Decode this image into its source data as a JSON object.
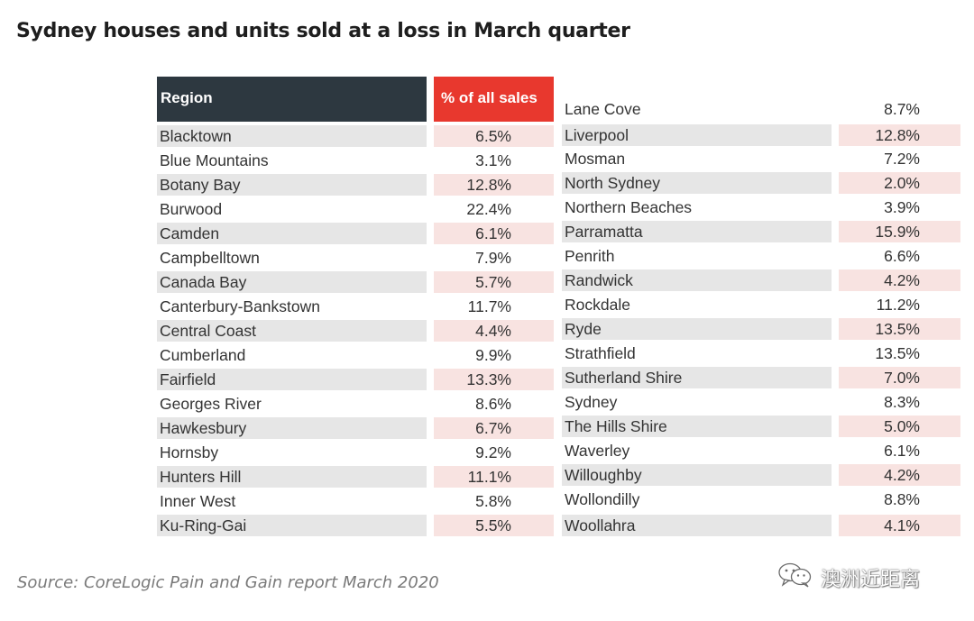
{
  "title": "Sydney houses and units sold at a loss in March quarter",
  "table": {
    "header_region": "Region",
    "header_pct": "% of all sales",
    "left_rows": [
      {
        "region": "Blacktown",
        "pct": "6.5%"
      },
      {
        "region": "Blue Mountains",
        "pct": "3.1%"
      },
      {
        "region": "Botany Bay",
        "pct": "12.8%"
      },
      {
        "region": "Burwood",
        "pct": "22.4%"
      },
      {
        "region": "Camden",
        "pct": "6.1%"
      },
      {
        "region": "Campbelltown",
        "pct": "7.9%"
      },
      {
        "region": "Canada Bay",
        "pct": "5.7%"
      },
      {
        "region": "Canterbury-Bankstown",
        "pct": "11.7%"
      },
      {
        "region": "Central Coast",
        "pct": "4.4%"
      },
      {
        "region": "Cumberland",
        "pct": "9.9%"
      },
      {
        "region": "Fairfield",
        "pct": "13.3%"
      },
      {
        "region": "Georges River",
        "pct": "8.6%"
      },
      {
        "region": "Hawkesbury",
        "pct": "6.7%"
      },
      {
        "region": "Hornsby",
        "pct": "9.2%"
      },
      {
        "region": "Hunters Hill",
        "pct": "11.1%"
      },
      {
        "region": "Inner West",
        "pct": "5.8%"
      },
      {
        "region": "Ku-Ring-Gai",
        "pct": "5.5%"
      }
    ],
    "right_rows": [
      {
        "region": "Lane Cove",
        "pct": "8.7%"
      },
      {
        "region": "Liverpool",
        "pct": "12.8%"
      },
      {
        "region": "Mosman",
        "pct": "7.2%"
      },
      {
        "region": "North Sydney",
        "pct": "2.0%"
      },
      {
        "region": "Northern Beaches",
        "pct": "3.9%"
      },
      {
        "region": "Parramatta",
        "pct": "15.9%"
      },
      {
        "region": "Penrith",
        "pct": "6.6%"
      },
      {
        "region": "Randwick",
        "pct": "4.2%"
      },
      {
        "region": "Rockdale",
        "pct": "11.2%"
      },
      {
        "region": "Ryde",
        "pct": "13.5%"
      },
      {
        "region": "Strathfield",
        "pct": "13.5%"
      },
      {
        "region": "Sutherland Shire",
        "pct": "7.0%"
      },
      {
        "region": "Sydney",
        "pct": "8.3%"
      },
      {
        "region": "The Hills Shire",
        "pct": "5.0%"
      },
      {
        "region": "Waverley",
        "pct": "6.1%"
      },
      {
        "region": "Willoughby",
        "pct": "4.2%"
      },
      {
        "region": "Wollondilly",
        "pct": "8.8%"
      },
      {
        "region": "Woollahra",
        "pct": "4.1%"
      }
    ]
  },
  "source": "Source: CoreLogic Pain and Gain report March 2020",
  "watermark": {
    "text": "澳洲近距离",
    "icon": "wechat-icon"
  },
  "colors": {
    "header_region_bg": "#2d3840",
    "header_pct_bg": "#e8382e",
    "shade_region": "#e6e6e6",
    "shade_pct": "#f8e3e1"
  }
}
